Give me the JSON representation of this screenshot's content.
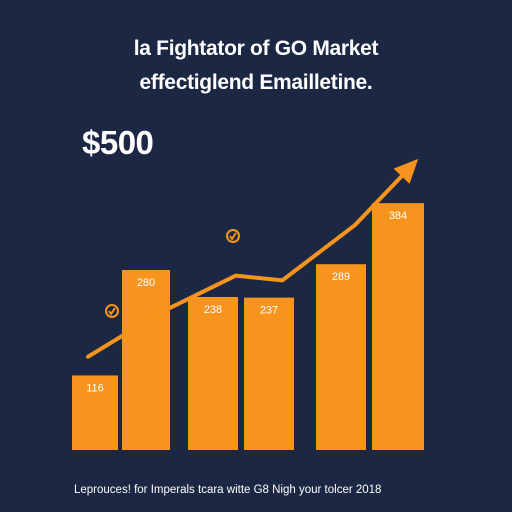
{
  "colors": {
    "background": "#1b2743",
    "bar": "#f7941d",
    "trend": "#f7941d",
    "text": "#ffffff"
  },
  "title_lines": [
    "la Fightator of GO Market",
    "effectiglend Emailletine."
  ],
  "headline_value": "$500",
  "footer_text": "Leprouces! for Imperals tcara witte G8 Nigh your tolcer 2018",
  "chart_data": {
    "type": "bar",
    "categories": [
      "",
      "",
      "",
      "",
      "",
      "",
      ""
    ],
    "values": [
      116,
      280,
      238,
      237,
      289,
      384,
      384
    ],
    "data_labels": [
      "116",
      "280",
      "238",
      "237",
      "289",
      "384",
      ""
    ],
    "ylim": [
      0,
      420
    ],
    "grid": false,
    "trend_line": {
      "points": [
        [
          0,
          0.86
        ],
        [
          1.25,
          1.78
        ],
        [
          2.55,
          2.55
        ],
        [
          3.35,
          2.45
        ],
        [
          4.6,
          3.6
        ],
        [
          5.55,
          4.8
        ]
      ],
      "arrowhead": true,
      "markers": [
        {
          "icon": "check-icon",
          "at": 0.45
        },
        {
          "icon": "check-icon",
          "at": 3.0
        }
      ]
    }
  }
}
